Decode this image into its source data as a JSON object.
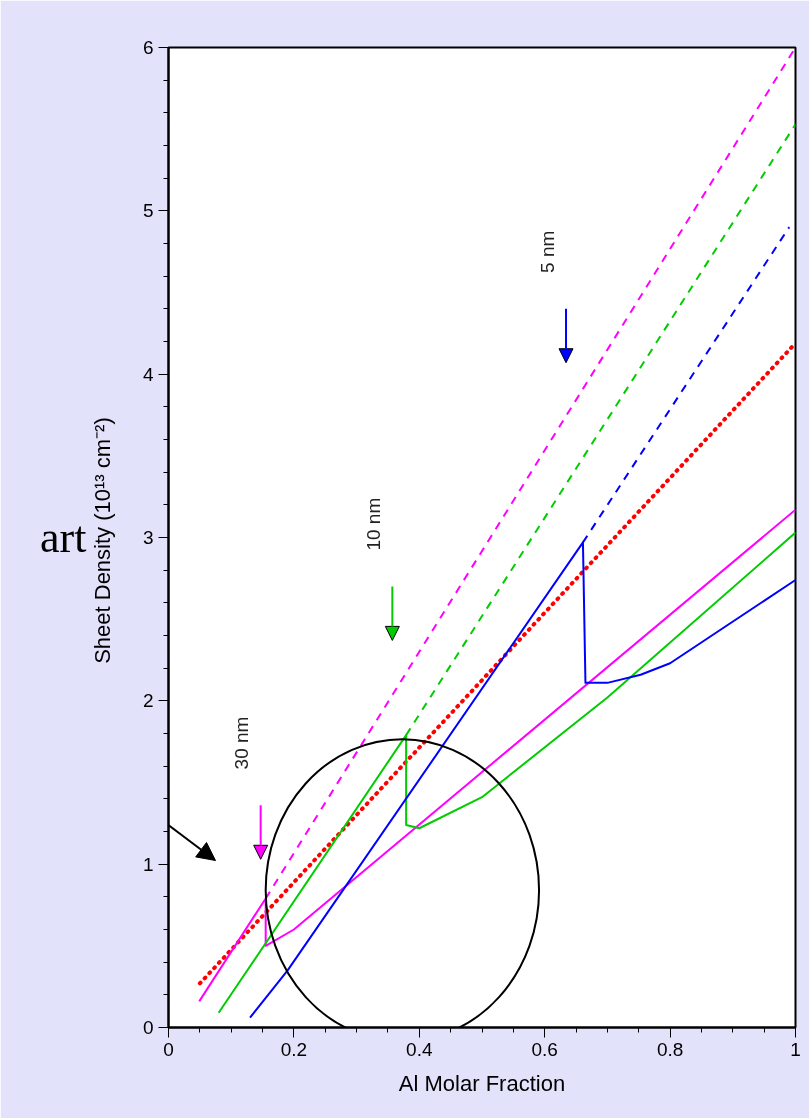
{
  "chart_data": {
    "type": "line",
    "xlabel": "Al Molar Fraction",
    "ylabel": "Sheet Density  (10¹³ cm⁻²)",
    "xlim": [
      0,
      1
    ],
    "xticks": [
      0,
      0.2,
      0.4,
      0.6,
      0.8,
      1
    ],
    "ylim": [
      0,
      6
    ],
    "yticks": [
      0,
      1,
      2,
      3,
      4,
      5,
      6
    ],
    "grid": false,
    "marker": "none",
    "series": [
      {
        "color": "#ff0000",
        "line_style": "dotted",
        "x": [
          0.05,
          1.0
        ],
        "values": [
          0.27,
          4.19
        ]
      },
      {
        "color": "#ff00ff",
        "line_style": "solid",
        "x": [
          0.049,
          0.155,
          0.155,
          0.2,
          1.0
        ],
        "values": [
          0.16,
          0.79,
          0.5,
          0.6,
          3.17
        ]
      },
      {
        "color": "#ff00ff",
        "line_style": "dashed",
        "x": [
          0.155,
          1.0
        ],
        "values": [
          0.79,
          6.0
        ]
      },
      {
        "color": "#00cc00",
        "line_style": "solid",
        "x": [
          0.08,
          0.379,
          0.379,
          0.4,
          0.5,
          0.7,
          1.0
        ],
        "values": [
          0.09,
          1.79,
          1.24,
          1.22,
          1.41,
          2.02,
          3.03
        ]
      },
      {
        "color": "#00cc00",
        "line_style": "dashed",
        "x": [
          0.379,
          1.0
        ],
        "values": [
          1.79,
          5.53
        ]
      },
      {
        "color": "#0000ff",
        "line_style": "solid",
        "x": [
          0.13,
          0.19,
          0.661,
          0.665,
          0.7,
          0.753,
          0.8,
          1.0
        ],
        "values": [
          0.06,
          0.35,
          2.97,
          2.11,
          2.11,
          2.16,
          2.23,
          2.74
        ]
      },
      {
        "color": "#0000ff",
        "line_style": "dashed",
        "x": [
          0.661,
          0.99
        ],
        "values": [
          2.97,
          4.9
        ]
      }
    ],
    "annotations": [
      "30 nm",
      "10 nm",
      "5 nm",
      "art"
    ]
  }
}
